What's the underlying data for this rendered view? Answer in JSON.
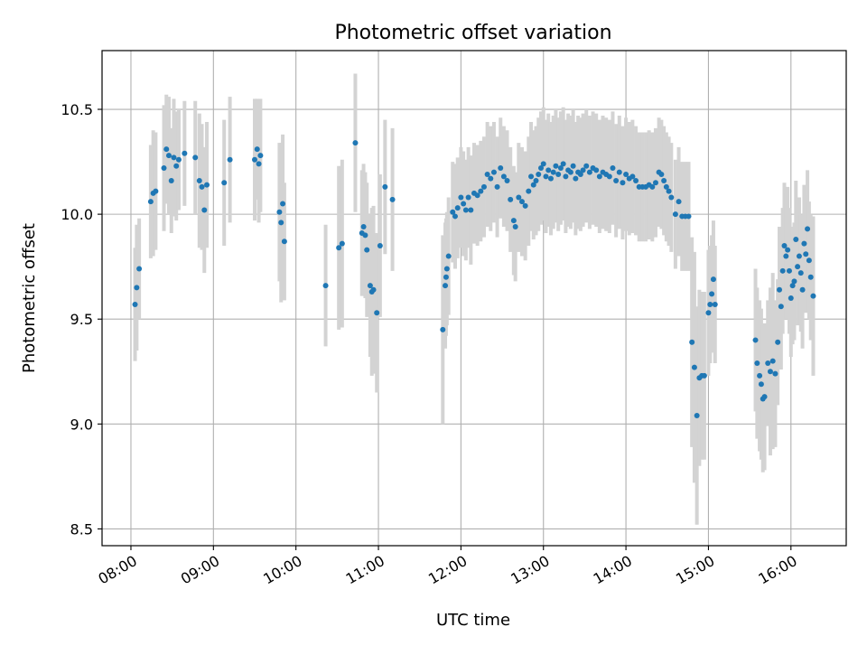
{
  "chart_data": {
    "type": "scatter",
    "title": "Photometric offset variation",
    "xlabel": "UTC time",
    "ylabel": "Photometric offset",
    "xlim_hours": [
      7.65,
      16.67
    ],
    "ylim": [
      8.42,
      10.78
    ],
    "grid": true,
    "x_ticks": [
      {
        "value": 8,
        "label": "08:00"
      },
      {
        "value": 9,
        "label": "09:00"
      },
      {
        "value": 10,
        "label": "10:00"
      },
      {
        "value": 11,
        "label": "11:00"
      },
      {
        "value": 12,
        "label": "12:00"
      },
      {
        "value": 13,
        "label": "13:00"
      },
      {
        "value": 14,
        "label": "14:00"
      },
      {
        "value": 15,
        "label": "15:00"
      },
      {
        "value": 16,
        "label": "16:00"
      }
    ],
    "y_ticks": [
      {
        "value": 8.5,
        "label": "8.5"
      },
      {
        "value": 9.0,
        "label": "9.0"
      },
      {
        "value": 9.5,
        "label": "9.5"
      },
      {
        "value": 10.0,
        "label": "10.0"
      },
      {
        "value": 10.5,
        "label": "10.5"
      }
    ],
    "colors": {
      "points": "#1f77b4",
      "errorbars": "#d3d3d3",
      "grid": "#b0b0b0",
      "axes": "#000000"
    },
    "points": [
      {
        "t": 8.05,
        "y": 9.57,
        "err": 0.27
      },
      {
        "t": 8.07,
        "y": 9.65,
        "err": 0.3
      },
      {
        "t": 8.1,
        "y": 9.74,
        "err": 0.24
      },
      {
        "t": 8.24,
        "y": 10.06,
        "err": 0.27
      },
      {
        "t": 8.27,
        "y": 10.1,
        "err": 0.3
      },
      {
        "t": 8.3,
        "y": 10.11,
        "err": 0.28
      },
      {
        "t": 8.4,
        "y": 10.22,
        "err": 0.3
      },
      {
        "t": 8.43,
        "y": 10.31,
        "err": 0.26
      },
      {
        "t": 8.46,
        "y": 10.28,
        "err": 0.28
      },
      {
        "t": 8.49,
        "y": 10.16,
        "err": 0.25
      },
      {
        "t": 8.52,
        "y": 10.27,
        "err": 0.28
      },
      {
        "t": 8.55,
        "y": 10.23,
        "err": 0.26
      },
      {
        "t": 8.58,
        "y": 10.26,
        "err": 0.24
      },
      {
        "t": 8.65,
        "y": 10.29,
        "err": 0.25
      },
      {
        "t": 8.78,
        "y": 10.27,
        "err": 0.27
      },
      {
        "t": 8.83,
        "y": 10.16,
        "err": 0.32
      },
      {
        "t": 8.86,
        "y": 10.13,
        "err": 0.3
      },
      {
        "t": 8.89,
        "y": 10.02,
        "err": 0.3
      },
      {
        "t": 8.92,
        "y": 10.14,
        "err": 0.3
      },
      {
        "t": 9.13,
        "y": 10.15,
        "err": 0.3
      },
      {
        "t": 9.2,
        "y": 10.26,
        "err": 0.3
      },
      {
        "t": 9.5,
        "y": 10.26,
        "err": 0.29
      },
      {
        "t": 9.53,
        "y": 10.31,
        "err": 0.24
      },
      {
        "t": 9.55,
        "y": 10.24,
        "err": 0.28
      },
      {
        "t": 9.57,
        "y": 10.28,
        "err": 0.27
      },
      {
        "t": 9.8,
        "y": 10.01,
        "err": 0.33
      },
      {
        "t": 9.82,
        "y": 9.96,
        "err": 0.38
      },
      {
        "t": 9.84,
        "y": 10.05,
        "err": 0.33
      },
      {
        "t": 9.86,
        "y": 9.87,
        "err": 0.28
      },
      {
        "t": 10.36,
        "y": 9.66,
        "err": 0.29
      },
      {
        "t": 10.52,
        "y": 9.84,
        "err": 0.39
      },
      {
        "t": 10.56,
        "y": 9.86,
        "err": 0.4
      },
      {
        "t": 10.72,
        "y": 10.34,
        "err": 0.33
      },
      {
        "t": 10.8,
        "y": 9.91,
        "err": 0.3
      },
      {
        "t": 10.82,
        "y": 9.94,
        "err": 0.3
      },
      {
        "t": 10.84,
        "y": 9.9,
        "err": 0.3
      },
      {
        "t": 10.86,
        "y": 9.83,
        "err": 0.32
      },
      {
        "t": 10.9,
        "y": 9.66,
        "err": 0.34
      },
      {
        "t": 10.92,
        "y": 9.63,
        "err": 0.4
      },
      {
        "t": 10.94,
        "y": 9.64,
        "err": 0.4
      },
      {
        "t": 10.98,
        "y": 9.53,
        "err": 0.38
      },
      {
        "t": 11.02,
        "y": 9.85,
        "err": 0.34
      },
      {
        "t": 11.08,
        "y": 10.13,
        "err": 0.32
      },
      {
        "t": 11.17,
        "y": 10.07,
        "err": 0.34
      },
      {
        "t": 11.78,
        "y": 9.45,
        "err": 0.45
      },
      {
        "t": 11.81,
        "y": 9.66,
        "err": 0.3
      },
      {
        "t": 11.82,
        "y": 9.7,
        "err": 0.28
      },
      {
        "t": 11.83,
        "y": 9.74,
        "err": 0.27
      },
      {
        "t": 11.85,
        "y": 9.8,
        "err": 0.28
      },
      {
        "t": 11.9,
        "y": 10.01,
        "err": 0.24
      },
      {
        "t": 11.93,
        "y": 9.99,
        "err": 0.25
      },
      {
        "t": 11.96,
        "y": 10.03,
        "err": 0.24
      },
      {
        "t": 12.0,
        "y": 10.08,
        "err": 0.24
      },
      {
        "t": 12.03,
        "y": 10.05,
        "err": 0.25
      },
      {
        "t": 12.06,
        "y": 10.02,
        "err": 0.24
      },
      {
        "t": 12.09,
        "y": 10.08,
        "err": 0.24
      },
      {
        "t": 12.12,
        "y": 10.02,
        "err": 0.26
      },
      {
        "t": 12.16,
        "y": 10.1,
        "err": 0.24
      },
      {
        "t": 12.2,
        "y": 10.09,
        "err": 0.24
      },
      {
        "t": 12.24,
        "y": 10.11,
        "err": 0.24
      },
      {
        "t": 12.28,
        "y": 10.13,
        "err": 0.24
      },
      {
        "t": 12.32,
        "y": 10.19,
        "err": 0.25
      },
      {
        "t": 12.36,
        "y": 10.17,
        "err": 0.25
      },
      {
        "t": 12.4,
        "y": 10.2,
        "err": 0.24
      },
      {
        "t": 12.44,
        "y": 10.13,
        "err": 0.24
      },
      {
        "t": 12.48,
        "y": 10.22,
        "err": 0.24
      },
      {
        "t": 12.52,
        "y": 10.18,
        "err": 0.24
      },
      {
        "t": 12.56,
        "y": 10.16,
        "err": 0.24
      },
      {
        "t": 12.6,
        "y": 10.07,
        "err": 0.25
      },
      {
        "t": 12.64,
        "y": 9.97,
        "err": 0.26
      },
      {
        "t": 12.66,
        "y": 9.94,
        "err": 0.26
      },
      {
        "t": 12.7,
        "y": 10.08,
        "err": 0.26
      },
      {
        "t": 12.74,
        "y": 10.06,
        "err": 0.26
      },
      {
        "t": 12.78,
        "y": 10.04,
        "err": 0.26
      },
      {
        "t": 12.82,
        "y": 10.11,
        "err": 0.26
      },
      {
        "t": 12.85,
        "y": 10.18,
        "err": 0.26
      },
      {
        "t": 12.88,
        "y": 10.14,
        "err": 0.26
      },
      {
        "t": 12.91,
        "y": 10.16,
        "err": 0.26
      },
      {
        "t": 12.94,
        "y": 10.19,
        "err": 0.27
      },
      {
        "t": 12.97,
        "y": 10.22,
        "err": 0.27
      },
      {
        "t": 13.0,
        "y": 10.24,
        "err": 0.27
      },
      {
        "t": 13.03,
        "y": 10.18,
        "err": 0.27
      },
      {
        "t": 13.06,
        "y": 10.21,
        "err": 0.27
      },
      {
        "t": 13.09,
        "y": 10.17,
        "err": 0.27
      },
      {
        "t": 13.12,
        "y": 10.2,
        "err": 0.27
      },
      {
        "t": 13.15,
        "y": 10.23,
        "err": 0.27
      },
      {
        "t": 13.18,
        "y": 10.19,
        "err": 0.27
      },
      {
        "t": 13.21,
        "y": 10.22,
        "err": 0.27
      },
      {
        "t": 13.24,
        "y": 10.24,
        "err": 0.27
      },
      {
        "t": 13.27,
        "y": 10.18,
        "err": 0.27
      },
      {
        "t": 13.3,
        "y": 10.21,
        "err": 0.27
      },
      {
        "t": 13.33,
        "y": 10.2,
        "err": 0.27
      },
      {
        "t": 13.36,
        "y": 10.23,
        "err": 0.27
      },
      {
        "t": 13.39,
        "y": 10.17,
        "err": 0.27
      },
      {
        "t": 13.42,
        "y": 10.2,
        "err": 0.27
      },
      {
        "t": 13.45,
        "y": 10.19,
        "err": 0.27
      },
      {
        "t": 13.48,
        "y": 10.21,
        "err": 0.27
      },
      {
        "t": 13.52,
        "y": 10.23,
        "err": 0.27
      },
      {
        "t": 13.56,
        "y": 10.2,
        "err": 0.27
      },
      {
        "t": 13.6,
        "y": 10.22,
        "err": 0.27
      },
      {
        "t": 13.64,
        "y": 10.21,
        "err": 0.27
      },
      {
        "t": 13.68,
        "y": 10.18,
        "err": 0.27
      },
      {
        "t": 13.72,
        "y": 10.2,
        "err": 0.27
      },
      {
        "t": 13.76,
        "y": 10.19,
        "err": 0.27
      },
      {
        "t": 13.8,
        "y": 10.18,
        "err": 0.27
      },
      {
        "t": 13.84,
        "y": 10.22,
        "err": 0.27
      },
      {
        "t": 13.88,
        "y": 10.16,
        "err": 0.27
      },
      {
        "t": 13.92,
        "y": 10.2,
        "err": 0.27
      },
      {
        "t": 13.96,
        "y": 10.15,
        "err": 0.27
      },
      {
        "t": 14.0,
        "y": 10.19,
        "err": 0.27
      },
      {
        "t": 14.04,
        "y": 10.17,
        "err": 0.27
      },
      {
        "t": 14.08,
        "y": 10.18,
        "err": 0.27
      },
      {
        "t": 14.12,
        "y": 10.16,
        "err": 0.26
      },
      {
        "t": 14.16,
        "y": 10.13,
        "err": 0.26
      },
      {
        "t": 14.2,
        "y": 10.13,
        "err": 0.26
      },
      {
        "t": 14.24,
        "y": 10.13,
        "err": 0.26
      },
      {
        "t": 14.28,
        "y": 10.14,
        "err": 0.26
      },
      {
        "t": 14.32,
        "y": 10.13,
        "err": 0.26
      },
      {
        "t": 14.36,
        "y": 10.15,
        "err": 0.26
      },
      {
        "t": 14.4,
        "y": 10.2,
        "err": 0.26
      },
      {
        "t": 14.43,
        "y": 10.19,
        "err": 0.26
      },
      {
        "t": 14.46,
        "y": 10.16,
        "err": 0.26
      },
      {
        "t": 14.49,
        "y": 10.13,
        "err": 0.26
      },
      {
        "t": 14.52,
        "y": 10.11,
        "err": 0.26
      },
      {
        "t": 14.55,
        "y": 10.08,
        "err": 0.26
      },
      {
        "t": 14.6,
        "y": 10.0,
        "err": 0.26
      },
      {
        "t": 14.64,
        "y": 10.06,
        "err": 0.26
      },
      {
        "t": 14.68,
        "y": 9.99,
        "err": 0.26
      },
      {
        "t": 14.72,
        "y": 9.99,
        "err": 0.26
      },
      {
        "t": 14.76,
        "y": 9.99,
        "err": 0.26
      },
      {
        "t": 14.8,
        "y": 9.39,
        "err": 0.5
      },
      {
        "t": 14.83,
        "y": 9.27,
        "err": 0.55
      },
      {
        "t": 14.86,
        "y": 9.04,
        "err": 0.52
      },
      {
        "t": 14.89,
        "y": 9.22,
        "err": 0.42
      },
      {
        "t": 14.92,
        "y": 9.23,
        "err": 0.4
      },
      {
        "t": 14.95,
        "y": 9.23,
        "err": 0.4
      },
      {
        "t": 15.0,
        "y": 9.53,
        "err": 0.3
      },
      {
        "t": 15.02,
        "y": 9.57,
        "err": 0.28
      },
      {
        "t": 15.04,
        "y": 9.62,
        "err": 0.28
      },
      {
        "t": 15.06,
        "y": 9.69,
        "err": 0.28
      },
      {
        "t": 15.08,
        "y": 9.57,
        "err": 0.28
      },
      {
        "t": 15.57,
        "y": 9.4,
        "err": 0.34
      },
      {
        "t": 15.59,
        "y": 9.29,
        "err": 0.36
      },
      {
        "t": 15.62,
        "y": 9.23,
        "err": 0.36
      },
      {
        "t": 15.64,
        "y": 9.19,
        "err": 0.36
      },
      {
        "t": 15.66,
        "y": 9.12,
        "err": 0.35
      },
      {
        "t": 15.68,
        "y": 9.13,
        "err": 0.35
      },
      {
        "t": 15.72,
        "y": 9.29,
        "err": 0.3
      },
      {
        "t": 15.75,
        "y": 9.25,
        "err": 0.4
      },
      {
        "t": 15.78,
        "y": 9.3,
        "err": 0.42
      },
      {
        "t": 15.81,
        "y": 9.24,
        "err": 0.35
      },
      {
        "t": 15.84,
        "y": 9.39,
        "err": 0.3
      },
      {
        "t": 15.86,
        "y": 9.64,
        "err": 0.3
      },
      {
        "t": 15.88,
        "y": 9.56,
        "err": 0.3
      },
      {
        "t": 15.9,
        "y": 9.73,
        "err": 0.3
      },
      {
        "t": 15.92,
        "y": 9.85,
        "err": 0.3
      },
      {
        "t": 15.94,
        "y": 9.8,
        "err": 0.3
      },
      {
        "t": 15.96,
        "y": 9.83,
        "err": 0.3
      },
      {
        "t": 15.98,
        "y": 9.73,
        "err": 0.3
      },
      {
        "t": 16.0,
        "y": 9.6,
        "err": 0.28
      },
      {
        "t": 16.02,
        "y": 9.66,
        "err": 0.28
      },
      {
        "t": 16.04,
        "y": 9.68,
        "err": 0.28
      },
      {
        "t": 16.06,
        "y": 9.88,
        "err": 0.28
      },
      {
        "t": 16.08,
        "y": 9.75,
        "err": 0.28
      },
      {
        "t": 16.1,
        "y": 9.8,
        "err": 0.28
      },
      {
        "t": 16.12,
        "y": 9.72,
        "err": 0.28
      },
      {
        "t": 16.14,
        "y": 9.64,
        "err": 0.28
      },
      {
        "t": 16.16,
        "y": 9.86,
        "err": 0.28
      },
      {
        "t": 16.18,
        "y": 9.81,
        "err": 0.28
      },
      {
        "t": 16.2,
        "y": 9.93,
        "err": 0.28
      },
      {
        "t": 16.22,
        "y": 9.78,
        "err": 0.28
      },
      {
        "t": 16.24,
        "y": 9.7,
        "err": 0.3
      },
      {
        "t": 16.27,
        "y": 9.61,
        "err": 0.38
      }
    ]
  }
}
